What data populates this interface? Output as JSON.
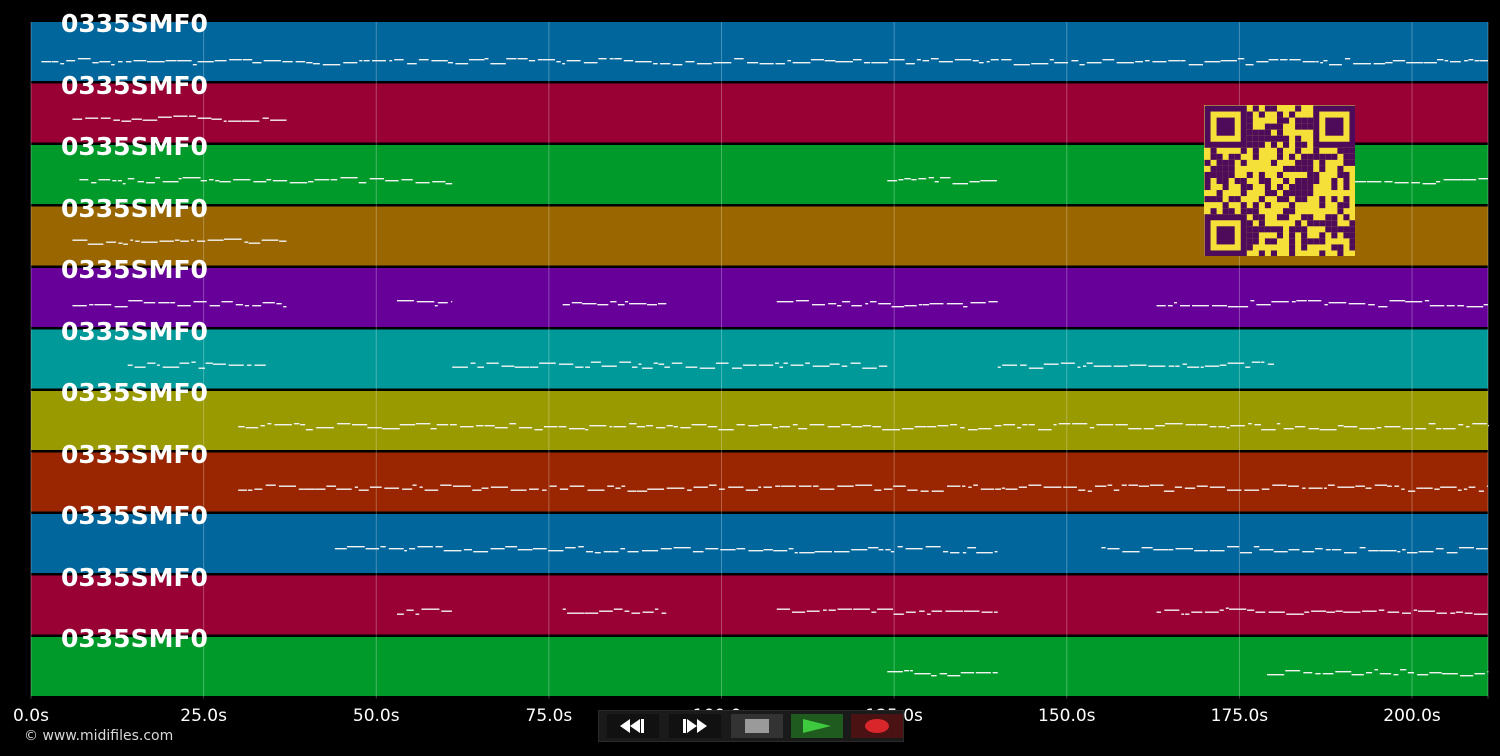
{
  "tracks": [
    {
      "label": "0335SMF0",
      "color": "#00669c"
    },
    {
      "label": "0335SMF0",
      "color": "#990033"
    },
    {
      "label": "0335SMF0",
      "color": "#009a2b"
    },
    {
      "label": "0335SMF0",
      "color": "#996600"
    },
    {
      "label": "0335SMF0",
      "color": "#660099"
    },
    {
      "label": "0335SMF0",
      "color": "#009999"
    },
    {
      "label": "0335SMF0",
      "color": "#999900"
    },
    {
      "label": "0335SMF0",
      "color": "#992600"
    },
    {
      "label": "0335SMF0",
      "color": "#00669c"
    },
    {
      "label": "0335SMF0",
      "color": "#990033"
    },
    {
      "label": "0335SMF0",
      "color": "#009a2b"
    }
  ],
  "timeline": {
    "max_seconds": 211,
    "ticks": [
      {
        "seconds": 0,
        "label": "0.0s"
      },
      {
        "seconds": 25,
        "label": "25.0s"
      },
      {
        "seconds": 50,
        "label": "50.0s"
      },
      {
        "seconds": 75,
        "label": "75.0s"
      },
      {
        "seconds": 100,
        "label": "100.0s"
      },
      {
        "seconds": 125,
        "label": "125.0s"
      },
      {
        "seconds": 150,
        "label": "150.0s"
      },
      {
        "seconds": 175,
        "label": "175.0s"
      },
      {
        "seconds": 200,
        "label": "200.0s"
      }
    ]
  },
  "note_segments": [
    [
      [
        1.5,
        211
      ]
    ],
    [
      [
        6,
        37
      ]
    ],
    [
      [
        7,
        61
      ],
      [
        124,
        140
      ],
      [
        190,
        211
      ]
    ],
    [
      [
        6,
        37
      ]
    ],
    [
      [
        6,
        37
      ],
      [
        53,
        61
      ],
      [
        77,
        92
      ],
      [
        108,
        140
      ],
      [
        163,
        211
      ]
    ],
    [
      [
        14,
        34
      ],
      [
        61,
        124
      ],
      [
        140,
        180
      ]
    ],
    [
      [
        30,
        211
      ]
    ],
    [
      [
        30,
        211
      ]
    ],
    [
      [
        44,
        140
      ],
      [
        155,
        211
      ]
    ],
    [
      [
        53,
        61
      ],
      [
        77,
        92
      ],
      [
        108,
        140
      ],
      [
        163,
        211
      ]
    ],
    [
      [
        124,
        140
      ],
      [
        179,
        211
      ]
    ]
  ],
  "transport": {
    "rewind_icon": "rewind-icon",
    "forward_icon": "fast-forward-icon",
    "stop_icon": "stop-icon",
    "play_icon": "play-icon",
    "record_icon": "record-icon"
  },
  "qr_colors": {
    "fg": "#4d0b5a",
    "bg": "#f5e03a"
  },
  "credit": "© www.midifiles.com"
}
